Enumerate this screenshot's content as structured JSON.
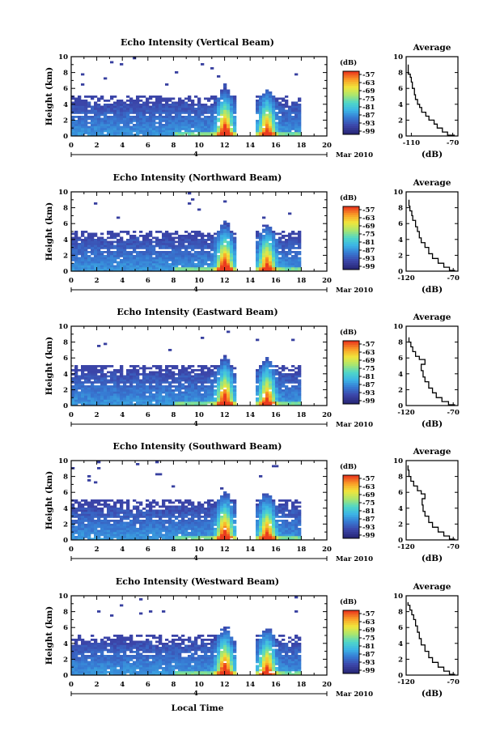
{
  "chart_data": [
    {
      "type": "heatmap",
      "title": "Echo Intensity (Vertical Beam)",
      "ylabel": "Height (km)",
      "x_ticks": [
        "0",
        "2",
        "4",
        "6",
        "8",
        "10",
        "12",
        "14",
        "16",
        "18",
        "20"
      ],
      "y_ticks": [
        "0",
        "2",
        "4",
        "6",
        "8",
        "10"
      ],
      "xlim": [
        0,
        20
      ],
      "ylim": [
        0,
        10
      ],
      "date_marker": "4",
      "date_label": "Mar 2010",
      "colorbar": {
        "unit": "(dB)",
        "labels": [
          "-57",
          "-63",
          "-69",
          "-75",
          "-81",
          "-87",
          "-93",
          "-99"
        ]
      },
      "average": {
        "title": "Average",
        "xlabel": "(dB)",
        "x_ticks": [
          "-110",
          "-70"
        ],
        "xlim": [
          -115,
          -65
        ],
        "y_ticks": [
          "0",
          "2",
          "4",
          "6",
          "8",
          "10"
        ],
        "profile": [
          [
            -68,
            0.1
          ],
          [
            -75,
            0.5
          ],
          [
            -80,
            1.0
          ],
          [
            -85,
            1.5
          ],
          [
            -88,
            2.0
          ],
          [
            -93,
            2.5
          ],
          [
            -96,
            3.0
          ],
          [
            -100,
            3.6
          ],
          [
            -102,
            4.0
          ],
          [
            -104,
            4.6
          ],
          [
            -106,
            5.2
          ],
          [
            -107,
            6.0
          ],
          [
            -109,
            6.8
          ],
          [
            -110,
            7.4
          ],
          [
            -111,
            7.8
          ],
          [
            -113,
            8.4
          ],
          [
            -113,
            9.0
          ]
        ]
      }
    },
    {
      "type": "heatmap",
      "title": "Echo Intensity (Northward Beam)",
      "ylabel": "Height (km)",
      "x_ticks": [
        "0",
        "2",
        "4",
        "6",
        "8",
        "10",
        "12",
        "14",
        "16",
        "18",
        "20"
      ],
      "y_ticks": [
        "0",
        "2",
        "4",
        "6",
        "8",
        "10"
      ],
      "xlim": [
        0,
        20
      ],
      "ylim": [
        0,
        10
      ],
      "date_marker": "4",
      "date_label": "Mar 2010",
      "colorbar": {
        "unit": "(dB)",
        "labels": [
          "-57",
          "-63",
          "-69",
          "-75",
          "-81",
          "-87",
          "-93",
          "-99"
        ]
      },
      "average": {
        "title": "Average",
        "xlabel": "(dB)",
        "x_ticks": [
          "-120",
          "-70"
        ],
        "xlim": [
          -120,
          -65
        ],
        "y_ticks": [
          "0",
          "2",
          "4",
          "6",
          "8",
          "10"
        ],
        "profile": [
          [
            -68,
            0.1
          ],
          [
            -74,
            0.5
          ],
          [
            -80,
            1.0
          ],
          [
            -86,
            1.6
          ],
          [
            -92,
            2.2
          ],
          [
            -96,
            3.0
          ],
          [
            -100,
            3.6
          ],
          [
            -104,
            4.2
          ],
          [
            -106,
            5.0
          ],
          [
            -108,
            5.6
          ],
          [
            -110,
            6.4
          ],
          [
            -113,
            7.0
          ],
          [
            -114,
            7.6
          ],
          [
            -116,
            8.2
          ],
          [
            -117,
            9.0
          ]
        ]
      }
    },
    {
      "type": "heatmap",
      "title": "Echo Intensity (Eastward Beam)",
      "ylabel": "Height (km)",
      "x_ticks": [
        "0",
        "2",
        "4",
        "6",
        "8",
        "10",
        "12",
        "14",
        "16",
        "18",
        "20"
      ],
      "y_ticks": [
        "0",
        "2",
        "4",
        "6",
        "8",
        "10"
      ],
      "xlim": [
        0,
        20
      ],
      "ylim": [
        0,
        10
      ],
      "date_marker": "4",
      "date_label": "Mar 2010",
      "colorbar": {
        "unit": "(dB)",
        "labels": [
          "-57",
          "-63",
          "-69",
          "-75",
          "-81",
          "-87",
          "-93",
          "-99"
        ]
      },
      "average": {
        "title": "Average",
        "xlabel": "(dB)",
        "x_ticks": [
          "-120",
          "-70"
        ],
        "xlim": [
          -120,
          -65
        ],
        "y_ticks": [
          "0",
          "2",
          "4",
          "6",
          "8",
          "10"
        ],
        "profile": [
          [
            -68,
            0.1
          ],
          [
            -75,
            0.5
          ],
          [
            -82,
            1.0
          ],
          [
            -88,
            1.6
          ],
          [
            -92,
            2.2
          ],
          [
            -96,
            3.0
          ],
          [
            -100,
            3.6
          ],
          [
            -102,
            4.4
          ],
          [
            -104,
            5.2
          ],
          [
            -100,
            5.8
          ],
          [
            -106,
            6.2
          ],
          [
            -110,
            6.8
          ],
          [
            -113,
            7.4
          ],
          [
            -115,
            8.0
          ],
          [
            -117,
            8.6
          ]
        ]
      }
    },
    {
      "type": "heatmap",
      "title": "Echo Intensity (Southward Beam)",
      "ylabel": "Height (km)",
      "x_ticks": [
        "0",
        "2",
        "4",
        "6",
        "8",
        "10",
        "12",
        "14",
        "16",
        "18",
        "20"
      ],
      "y_ticks": [
        "0",
        "2",
        "4",
        "6",
        "8",
        "10"
      ],
      "xlim": [
        0,
        20
      ],
      "ylim": [
        0,
        10
      ],
      "date_marker": "4",
      "date_label": "Mar 2010",
      "colorbar": {
        "unit": "(dB)",
        "labels": [
          "-57",
          "-63",
          "-69",
          "-75",
          "-81",
          "-87",
          "-93",
          "-99"
        ]
      },
      "average": {
        "title": "Average",
        "xlabel": "(dB)",
        "x_ticks": [
          "-120",
          "-70"
        ],
        "xlim": [
          -120,
          -65
        ],
        "y_ticks": [
          "0",
          "2",
          "4",
          "6",
          "8",
          "10"
        ],
        "profile": [
          [
            -68,
            0.1
          ],
          [
            -74,
            0.5
          ],
          [
            -80,
            1.0
          ],
          [
            -86,
            1.6
          ],
          [
            -92,
            2.2
          ],
          [
            -96,
            3.0
          ],
          [
            -100,
            3.6
          ],
          [
            -102,
            4.4
          ],
          [
            -103,
            5.2
          ],
          [
            -100,
            5.8
          ],
          [
            -104,
            6.2
          ],
          [
            -108,
            6.8
          ],
          [
            -112,
            7.4
          ],
          [
            -115,
            8.0
          ],
          [
            -117,
            8.8
          ],
          [
            -118,
            9.4
          ]
        ]
      }
    },
    {
      "type": "heatmap",
      "title": "Echo Intensity (Westward Beam)",
      "ylabel": "Height (km)",
      "x_ticks": [
        "0",
        "2",
        "4",
        "6",
        "8",
        "10",
        "12",
        "14",
        "16",
        "18",
        "20"
      ],
      "y_ticks": [
        "0",
        "2",
        "4",
        "6",
        "8",
        "10"
      ],
      "xlim": [
        0,
        20
      ],
      "ylim": [
        0,
        10
      ],
      "date_marker": "4",
      "date_label": "Mar 2010",
      "colorbar": {
        "unit": "(dB)",
        "labels": [
          "-57",
          "-63",
          "-69",
          "-75",
          "-81",
          "-87",
          "-93",
          "-99"
        ]
      },
      "average": {
        "title": "Average",
        "xlabel": "(dB)",
        "x_ticks": [
          "-120",
          "-70"
        ],
        "xlim": [
          -120,
          -65
        ],
        "y_ticks": [
          "0",
          "2",
          "4",
          "6",
          "8",
          "10"
        ],
        "profile": [
          [
            -68,
            0.1
          ],
          [
            -74,
            0.5
          ],
          [
            -80,
            1.0
          ],
          [
            -86,
            1.6
          ],
          [
            -92,
            2.2
          ],
          [
            -96,
            3.0
          ],
          [
            -100,
            3.8
          ],
          [
            -104,
            4.6
          ],
          [
            -106,
            5.4
          ],
          [
            -108,
            6.2
          ],
          [
            -110,
            7.0
          ],
          [
            -112,
            7.6
          ],
          [
            -114,
            8.2
          ],
          [
            -116,
            8.8
          ],
          [
            -118,
            9.2
          ]
        ]
      }
    }
  ],
  "xlabel": "Local Time"
}
